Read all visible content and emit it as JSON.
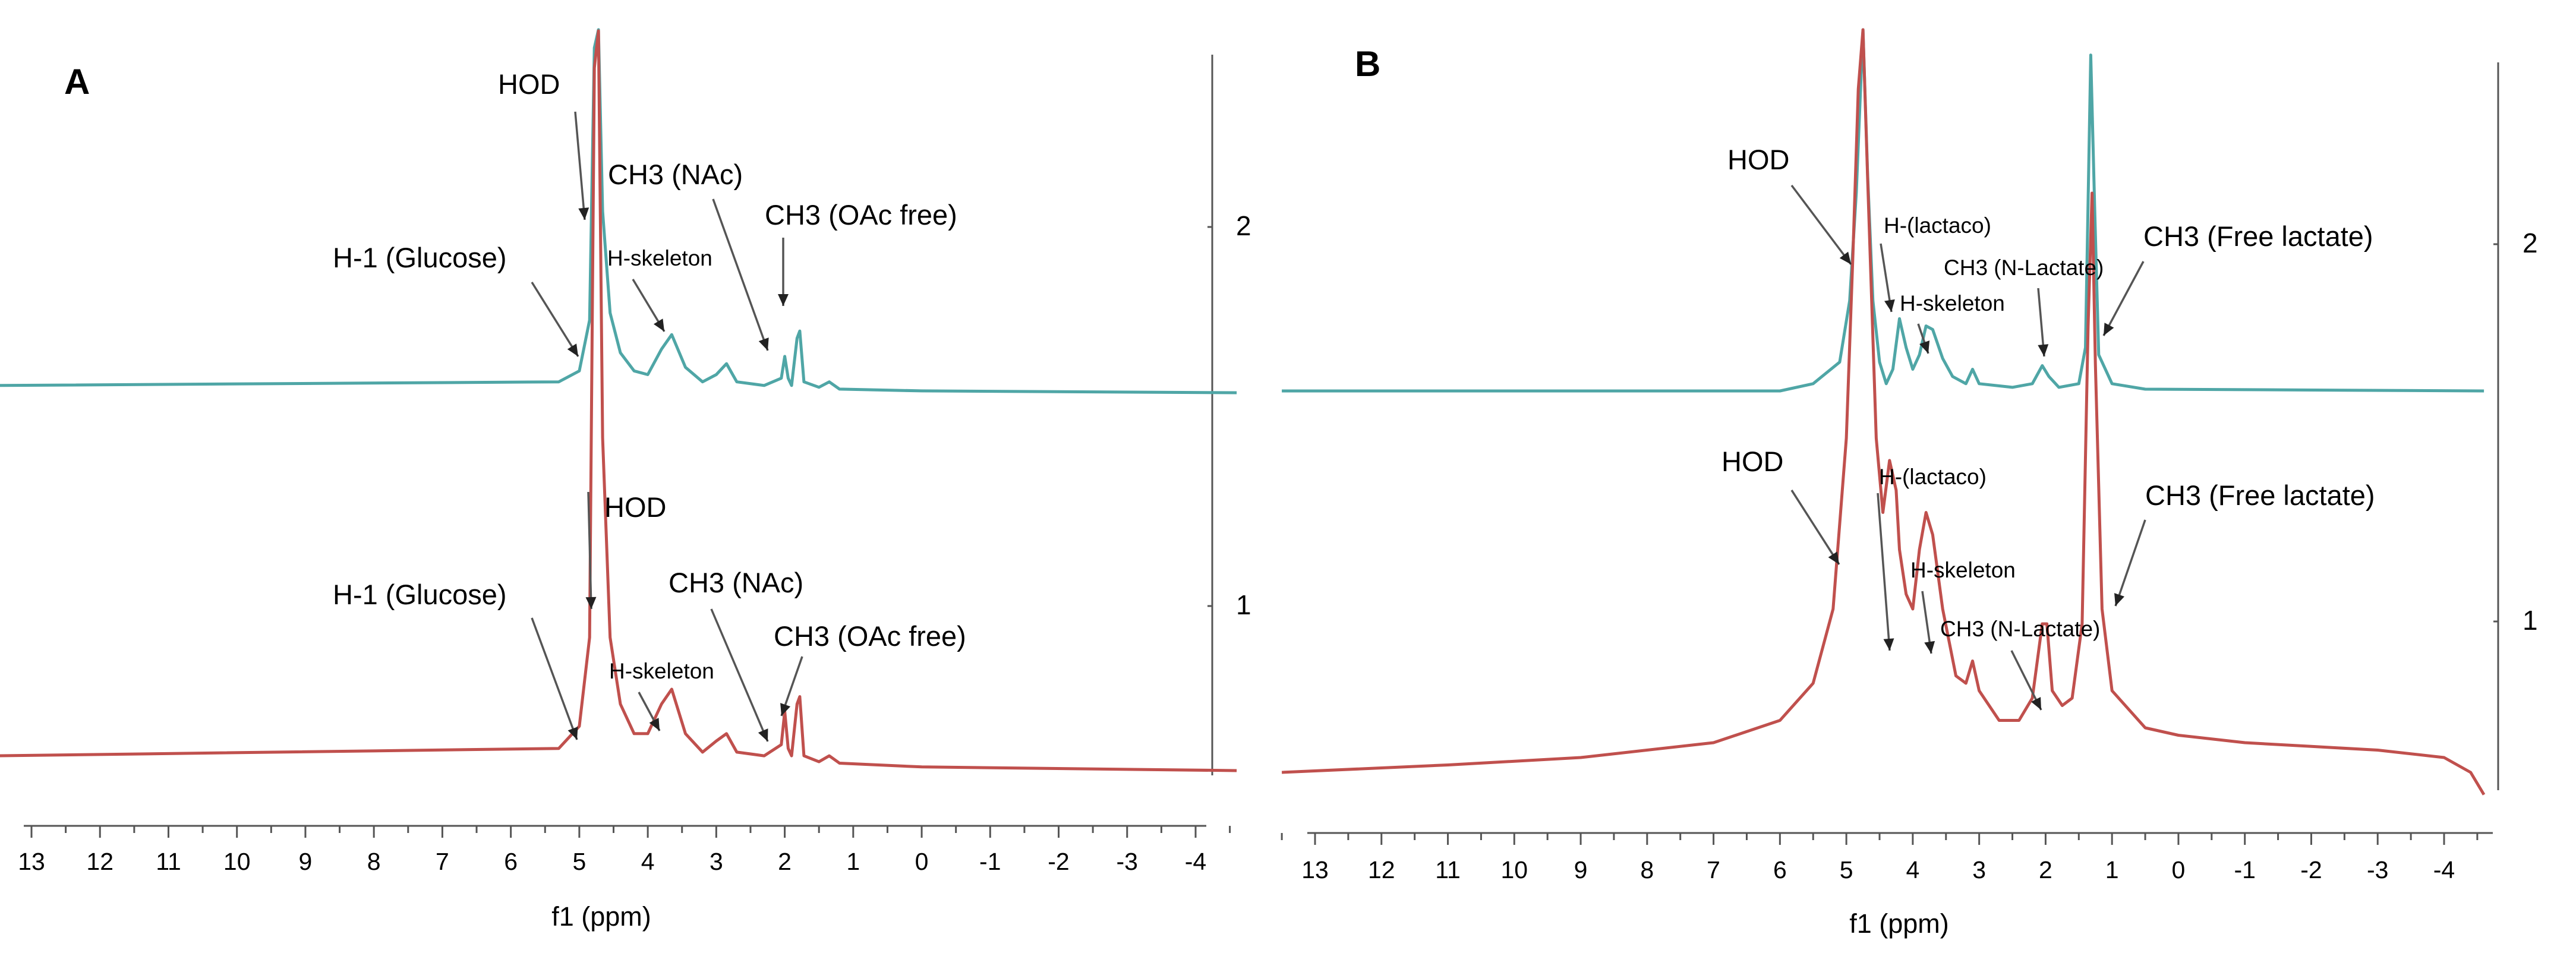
{
  "chart_data": [
    {
      "panel": "A",
      "type": "line",
      "xlabel": "f1 (ppm)",
      "x_ticks": [
        "13",
        "12",
        "11",
        "10",
        "9",
        "8",
        "7",
        "6",
        "5",
        "4",
        "3",
        "2",
        "1",
        "0",
        "-1",
        "-2",
        "-3",
        "-4"
      ],
      "xlim": [
        13.5,
        -4.6
      ],
      "reversed_x": true,
      "y_ticks": [
        "2",
        "1"
      ],
      "series": [
        {
          "name": "2",
          "color": "#4fa6a6",
          "points": [
            [
              13.5,
              0.02
            ],
            [
              5.3,
              0.03
            ],
            [
              5.0,
              0.06
            ],
            [
              4.85,
              0.2
            ],
            [
              4.78,
              0.95
            ],
            [
              4.72,
              1.0
            ],
            [
              4.66,
              0.5
            ],
            [
              4.55,
              0.22
            ],
            [
              4.4,
              0.11
            ],
            [
              4.2,
              0.06
            ],
            [
              4.0,
              0.05
            ],
            [
              3.8,
              0.12
            ],
            [
              3.65,
              0.16
            ],
            [
              3.45,
              0.07
            ],
            [
              3.2,
              0.03
            ],
            [
              3.0,
              0.05
            ],
            [
              2.85,
              0.08
            ],
            [
              2.7,
              0.03
            ],
            [
              2.3,
              0.02
            ],
            [
              2.05,
              0.04
            ],
            [
              2.0,
              0.1
            ],
            [
              1.95,
              0.04
            ],
            [
              1.9,
              0.02
            ],
            [
              1.82,
              0.15
            ],
            [
              1.78,
              0.17
            ],
            [
              1.72,
              0.03
            ],
            [
              1.5,
              0.015
            ],
            [
              1.35,
              0.03
            ],
            [
              1.2,
              0.01
            ],
            [
              0.0,
              0.005
            ],
            [
              -4.6,
              0.0
            ]
          ],
          "annotations": [
            {
              "label": "HOD",
              "ppm": 4.75
            },
            {
              "label": "CH3 (NAc)",
              "ppm": 2.0
            },
            {
              "label": "CH3 (OAc free)",
              "ppm": 1.8
            },
            {
              "label": "H-1 (Glucose)",
              "ppm": 4.95
            },
            {
              "label": "H-skeleton",
              "ppm": 3.65
            }
          ]
        },
        {
          "name": "1",
          "color": "#c0504d",
          "points": [
            [
              13.5,
              0.02
            ],
            [
              5.3,
              0.03
            ],
            [
              5.0,
              0.06
            ],
            [
              4.85,
              0.18
            ],
            [
              4.78,
              0.95
            ],
            [
              4.72,
              1.0
            ],
            [
              4.66,
              0.45
            ],
            [
              4.55,
              0.18
            ],
            [
              4.4,
              0.09
            ],
            [
              4.2,
              0.05
            ],
            [
              4.0,
              0.05
            ],
            [
              3.8,
              0.09
            ],
            [
              3.65,
              0.11
            ],
            [
              3.45,
              0.05
            ],
            [
              3.2,
              0.025
            ],
            [
              3.0,
              0.04
            ],
            [
              2.85,
              0.05
            ],
            [
              2.7,
              0.025
            ],
            [
              2.3,
              0.02
            ],
            [
              2.05,
              0.035
            ],
            [
              2.0,
              0.08
            ],
            [
              1.95,
              0.03
            ],
            [
              1.9,
              0.02
            ],
            [
              1.82,
              0.09
            ],
            [
              1.78,
              0.1
            ],
            [
              1.72,
              0.02
            ],
            [
              1.5,
              0.012
            ],
            [
              1.35,
              0.02
            ],
            [
              1.2,
              0.01
            ],
            [
              0.0,
              0.005
            ],
            [
              -4.6,
              0.0
            ]
          ],
          "annotations": [
            {
              "label": "HOD",
              "ppm": 4.72
            },
            {
              "label": "H-1 (Glucose)",
              "ppm": 4.95
            },
            {
              "label": "CH3 (NAc)",
              "ppm": 2.0
            },
            {
              "label": "CH3 (OAc free)",
              "ppm": 1.8
            },
            {
              "label": "H-skeleton",
              "ppm": 3.65
            }
          ]
        }
      ]
    },
    {
      "panel": "B",
      "type": "line",
      "xlabel": "f1 (ppm)",
      "x_ticks": [
        "13",
        "12",
        "11",
        "10",
        "9",
        "8",
        "7",
        "6",
        "5",
        "4",
        "3",
        "2",
        "1",
        "0",
        "-1",
        "-2",
        "-3",
        "-4"
      ],
      "xlim": [
        13.5,
        -4.6
      ],
      "reversed_x": true,
      "y_ticks": [
        "2",
        "1"
      ],
      "series": [
        {
          "name": "2",
          "color": "#4fa6a6",
          "points": [
            [
              13.5,
              0.0
            ],
            [
              6.0,
              0.0
            ],
            [
              5.5,
              0.02
            ],
            [
              5.1,
              0.08
            ],
            [
              4.95,
              0.25
            ],
            [
              4.85,
              0.55
            ],
            [
              4.75,
              1.0
            ],
            [
              4.68,
              0.6
            ],
            [
              4.6,
              0.25
            ],
            [
              4.5,
              0.08
            ],
            [
              4.4,
              0.02
            ],
            [
              4.3,
              0.06
            ],
            [
              4.2,
              0.2
            ],
            [
              4.1,
              0.12
            ],
            [
              4.0,
              0.06
            ],
            [
              3.9,
              0.1
            ],
            [
              3.8,
              0.18
            ],
            [
              3.7,
              0.17
            ],
            [
              3.55,
              0.09
            ],
            [
              3.4,
              0.04
            ],
            [
              3.2,
              0.02
            ],
            [
              3.1,
              0.06
            ],
            [
              3.0,
              0.02
            ],
            [
              2.5,
              0.01
            ],
            [
              2.2,
              0.02
            ],
            [
              2.05,
              0.07
            ],
            [
              1.95,
              0.04
            ],
            [
              1.8,
              0.01
            ],
            [
              1.5,
              0.02
            ],
            [
              1.4,
              0.12
            ],
            [
              1.32,
              0.93
            ],
            [
              1.26,
              0.5
            ],
            [
              1.2,
              0.1
            ],
            [
              1.0,
              0.02
            ],
            [
              0.5,
              0.005
            ],
            [
              -4.6,
              0.0
            ]
          ],
          "annotations": [
            {
              "label": "HOD",
              "ppm": 4.75
            },
            {
              "label": "H-(lactaco)",
              "ppm": 4.15
            },
            {
              "label": "CH3 (N-Lactate)",
              "ppm": 2.0
            },
            {
              "label": "CH3 (Free lactate)",
              "ppm": 1.3
            },
            {
              "label": "H-skeleton",
              "ppm": 3.8
            }
          ]
        },
        {
          "name": "1",
          "color": "#c0504d",
          "points": [
            [
              13.5,
              0.0
            ],
            [
              11.0,
              0.01
            ],
            [
              9.0,
              0.02
            ],
            [
              7.0,
              0.04
            ],
            [
              6.0,
              0.07
            ],
            [
              5.5,
              0.12
            ],
            [
              5.2,
              0.22
            ],
            [
              5.0,
              0.45
            ],
            [
              4.9,
              0.7
            ],
            [
              4.82,
              0.92
            ],
            [
              4.75,
              1.0
            ],
            [
              4.68,
              0.8
            ],
            [
              4.55,
              0.45
            ],
            [
              4.45,
              0.35
            ],
            [
              4.35,
              0.42
            ],
            [
              4.25,
              0.38
            ],
            [
              4.2,
              0.3
            ],
            [
              4.1,
              0.24
            ],
            [
              4.0,
              0.22
            ],
            [
              3.9,
              0.3
            ],
            [
              3.8,
              0.35
            ],
            [
              3.7,
              0.32
            ],
            [
              3.55,
              0.22
            ],
            [
              3.35,
              0.13
            ],
            [
              3.2,
              0.12
            ],
            [
              3.1,
              0.15
            ],
            [
              3.0,
              0.11
            ],
            [
              2.7,
              0.07
            ],
            [
              2.4,
              0.07
            ],
            [
              2.2,
              0.1
            ],
            [
              2.05,
              0.2
            ],
            [
              1.98,
              0.2
            ],
            [
              1.9,
              0.11
            ],
            [
              1.75,
              0.09
            ],
            [
              1.6,
              0.1
            ],
            [
              1.45,
              0.2
            ],
            [
              1.36,
              0.6
            ],
            [
              1.3,
              0.78
            ],
            [
              1.25,
              0.55
            ],
            [
              1.15,
              0.22
            ],
            [
              1.0,
              0.11
            ],
            [
              0.5,
              0.06
            ],
            [
              0.0,
              0.05
            ],
            [
              -1.0,
              0.04
            ],
            [
              -2.0,
              0.035
            ],
            [
              -3.0,
              0.03
            ],
            [
              -4.0,
              0.02
            ],
            [
              -4.4,
              0.0
            ],
            [
              -4.6,
              -0.03
            ]
          ],
          "annotations": [
            {
              "label": "HOD",
              "ppm": 4.9
            },
            {
              "label": "H-(lactaco)",
              "ppm": 4.3
            },
            {
              "label": "CH3 (Free lactate)",
              "ppm": 1.3
            },
            {
              "label": "H-skeleton",
              "ppm": 3.85
            },
            {
              "label": "CH3 (N-Lactate)",
              "ppm": 2.0
            }
          ]
        }
      ]
    }
  ]
}
